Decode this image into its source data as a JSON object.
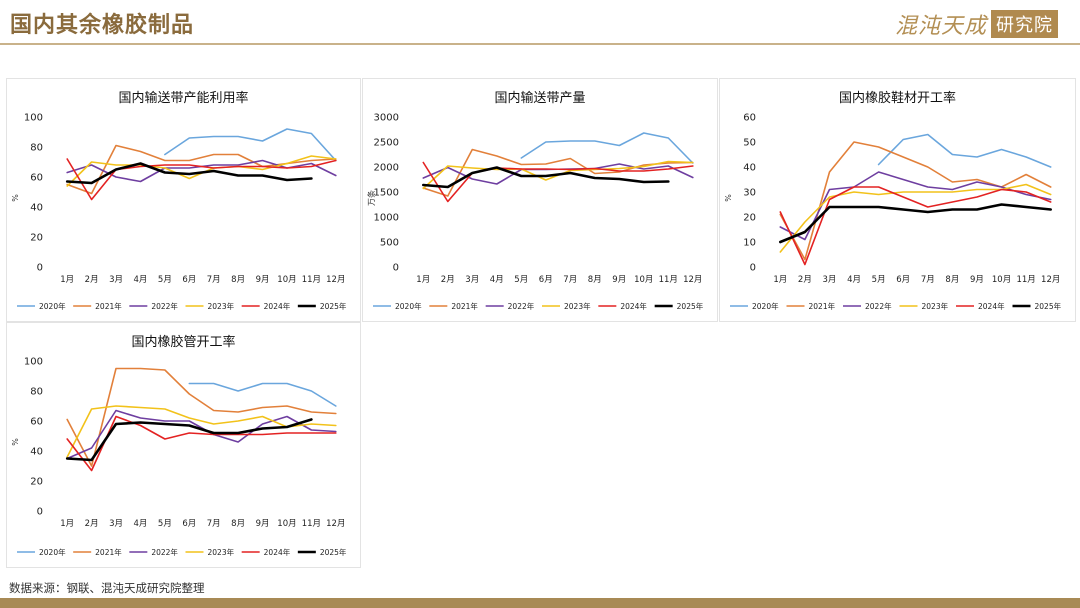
{
  "header": {
    "title": "国内其余橡胶制品",
    "logo_text": "混沌天成",
    "logo_box_text": "研究院"
  },
  "footer": {
    "source": "数据来源：钢联、混沌天成研究院整理"
  },
  "colors": {
    "2020年": "#6aa6dd",
    "2021年": "#e2803a",
    "2022年": "#6e3ea0",
    "2023年": "#f2c21a",
    "2024年": "#e32222",
    "2025年": "#000000"
  },
  "chart_data": [
    {
      "type": "line",
      "title": "国内输送带产能利用率",
      "ylabel": "%",
      "ylim": [
        0,
        100
      ],
      "yticks": [
        0,
        20,
        40,
        60,
        80,
        100
      ],
      "categories": [
        "1月",
        "2月",
        "3月",
        "4月",
        "5月",
        "6月",
        "7月",
        "8月",
        "9月",
        "10月",
        "11月",
        "12月"
      ],
      "series": [
        {
          "name": "2020年",
          "values": [
            null,
            null,
            null,
            null,
            75,
            86,
            87,
            87,
            84,
            92,
            89,
            71
          ]
        },
        {
          "name": "2021年",
          "values": [
            55,
            49,
            81,
            77,
            71,
            71,
            75,
            75,
            67,
            69,
            71,
            72
          ]
        },
        {
          "name": "2022年",
          "values": [
            63,
            68,
            60,
            57,
            66,
            66,
            68,
            68,
            71,
            66,
            69,
            61
          ]
        },
        {
          "name": "2023年",
          "values": [
            54,
            70,
            68,
            68,
            66,
            59,
            66,
            67,
            65,
            69,
            74,
            72
          ]
        },
        {
          "name": "2024年",
          "values": [
            72,
            45,
            65,
            67,
            68,
            68,
            66,
            67,
            67,
            66,
            67,
            71
          ]
        },
        {
          "name": "2025年",
          "values": [
            57,
            56,
            65,
            69,
            63,
            62,
            64,
            61,
            61,
            58,
            59,
            null
          ]
        }
      ]
    },
    {
      "type": "line",
      "title": "国内输送带产量",
      "ylabel": "万条",
      "ylim": [
        0,
        3000
      ],
      "yticks": [
        0,
        500,
        1000,
        1500,
        2000,
        2500,
        3000
      ],
      "categories": [
        "1月",
        "2月",
        "3月",
        "4月",
        "5月",
        "6月",
        "7月",
        "8月",
        "9月",
        "10月",
        "11月",
        "12月"
      ],
      "series": [
        {
          "name": "2020年",
          "values": [
            null,
            null,
            null,
            null,
            2180,
            2500,
            2520,
            2520,
            2430,
            2680,
            2580,
            2080
          ]
        },
        {
          "name": "2021年",
          "values": [
            1580,
            1420,
            2350,
            2220,
            2050,
            2060,
            2170,
            1870,
            1900,
            2040,
            2080,
            2090
          ]
        },
        {
          "name": "2022年",
          "values": [
            1780,
            1990,
            1760,
            1660,
            1950,
            1950,
            1960,
            1970,
            2060,
            1960,
            2020,
            1790
          ]
        },
        {
          "name": "2023年",
          "values": [
            1570,
            2020,
            1980,
            1950,
            1960,
            1740,
            1930,
            1950,
            1970,
            2010,
            2110,
            2090
          ]
        },
        {
          "name": "2024年",
          "values": [
            2090,
            1310,
            1880,
            1980,
            1960,
            1960,
            1950,
            1970,
            1920,
            1920,
            1960,
            2020
          ]
        },
        {
          "name": "2025年",
          "values": [
            1640,
            1600,
            1880,
            1990,
            1820,
            1820,
            1880,
            1780,
            1760,
            1700,
            1710,
            null
          ]
        }
      ]
    },
    {
      "type": "line",
      "title": "国内橡胶鞋材开工率",
      "ylabel": "%",
      "ylim": [
        0,
        60
      ],
      "yticks": [
        0,
        10,
        20,
        30,
        40,
        50,
        60
      ],
      "categories": [
        "1月",
        "2月",
        "3月",
        "4月",
        "5月",
        "6月",
        "7月",
        "8月",
        "9月",
        "10月",
        "11月",
        "12月"
      ],
      "series": [
        {
          "name": "2020年",
          "values": [
            null,
            null,
            null,
            null,
            41,
            51,
            53,
            45,
            44,
            47,
            44,
            40
          ]
        },
        {
          "name": "2021年",
          "values": [
            21,
            3,
            38,
            50,
            48,
            44,
            40,
            34,
            35,
            32,
            37,
            32
          ]
        },
        {
          "name": "2022年",
          "values": [
            16,
            11,
            31,
            32,
            38,
            35,
            32,
            31,
            34,
            32,
            29,
            27
          ]
        },
        {
          "name": "2023年",
          "values": [
            6,
            18,
            28,
            30,
            29,
            30,
            30,
            30,
            31,
            31,
            33,
            29
          ]
        },
        {
          "name": "2024年",
          "values": [
            22,
            1,
            27,
            32,
            32,
            28,
            24,
            26,
            28,
            31,
            30,
            26
          ]
        },
        {
          "name": "2025年",
          "values": [
            10,
            14,
            24,
            24,
            24,
            23,
            22,
            23,
            23,
            25,
            24,
            23
          ]
        }
      ]
    },
    {
      "type": "line",
      "title": "国内橡胶管开工率",
      "ylabel": "%",
      "ylim": [
        0,
        100
      ],
      "yticks": [
        0,
        20,
        40,
        60,
        80,
        100
      ],
      "categories": [
        "1月",
        "2月",
        "3月",
        "4月",
        "5月",
        "6月",
        "7月",
        "8月",
        "9月",
        "10月",
        "11月",
        "12月"
      ],
      "series": [
        {
          "name": "2020年",
          "values": [
            null,
            null,
            null,
            null,
            null,
            85,
            85,
            80,
            85,
            85,
            80,
            70
          ]
        },
        {
          "name": "2021年",
          "values": [
            61,
            30,
            95,
            95,
            94,
            78,
            67,
            66,
            69,
            70,
            66,
            65
          ]
        },
        {
          "name": "2022年",
          "values": [
            35,
            42,
            67,
            62,
            60,
            60,
            51,
            46,
            58,
            63,
            54,
            53
          ]
        },
        {
          "name": "2023年",
          "values": [
            36,
            68,
            70,
            69,
            68,
            62,
            58,
            60,
            63,
            56,
            58,
            57
          ]
        },
        {
          "name": "2024年",
          "values": [
            48,
            27,
            63,
            57,
            48,
            52,
            51,
            51,
            51,
            52,
            52,
            52
          ]
        },
        {
          "name": "2025年",
          "values": [
            35,
            34,
            58,
            59,
            58,
            57,
            52,
            52,
            55,
            56,
            61,
            null
          ]
        }
      ]
    }
  ]
}
